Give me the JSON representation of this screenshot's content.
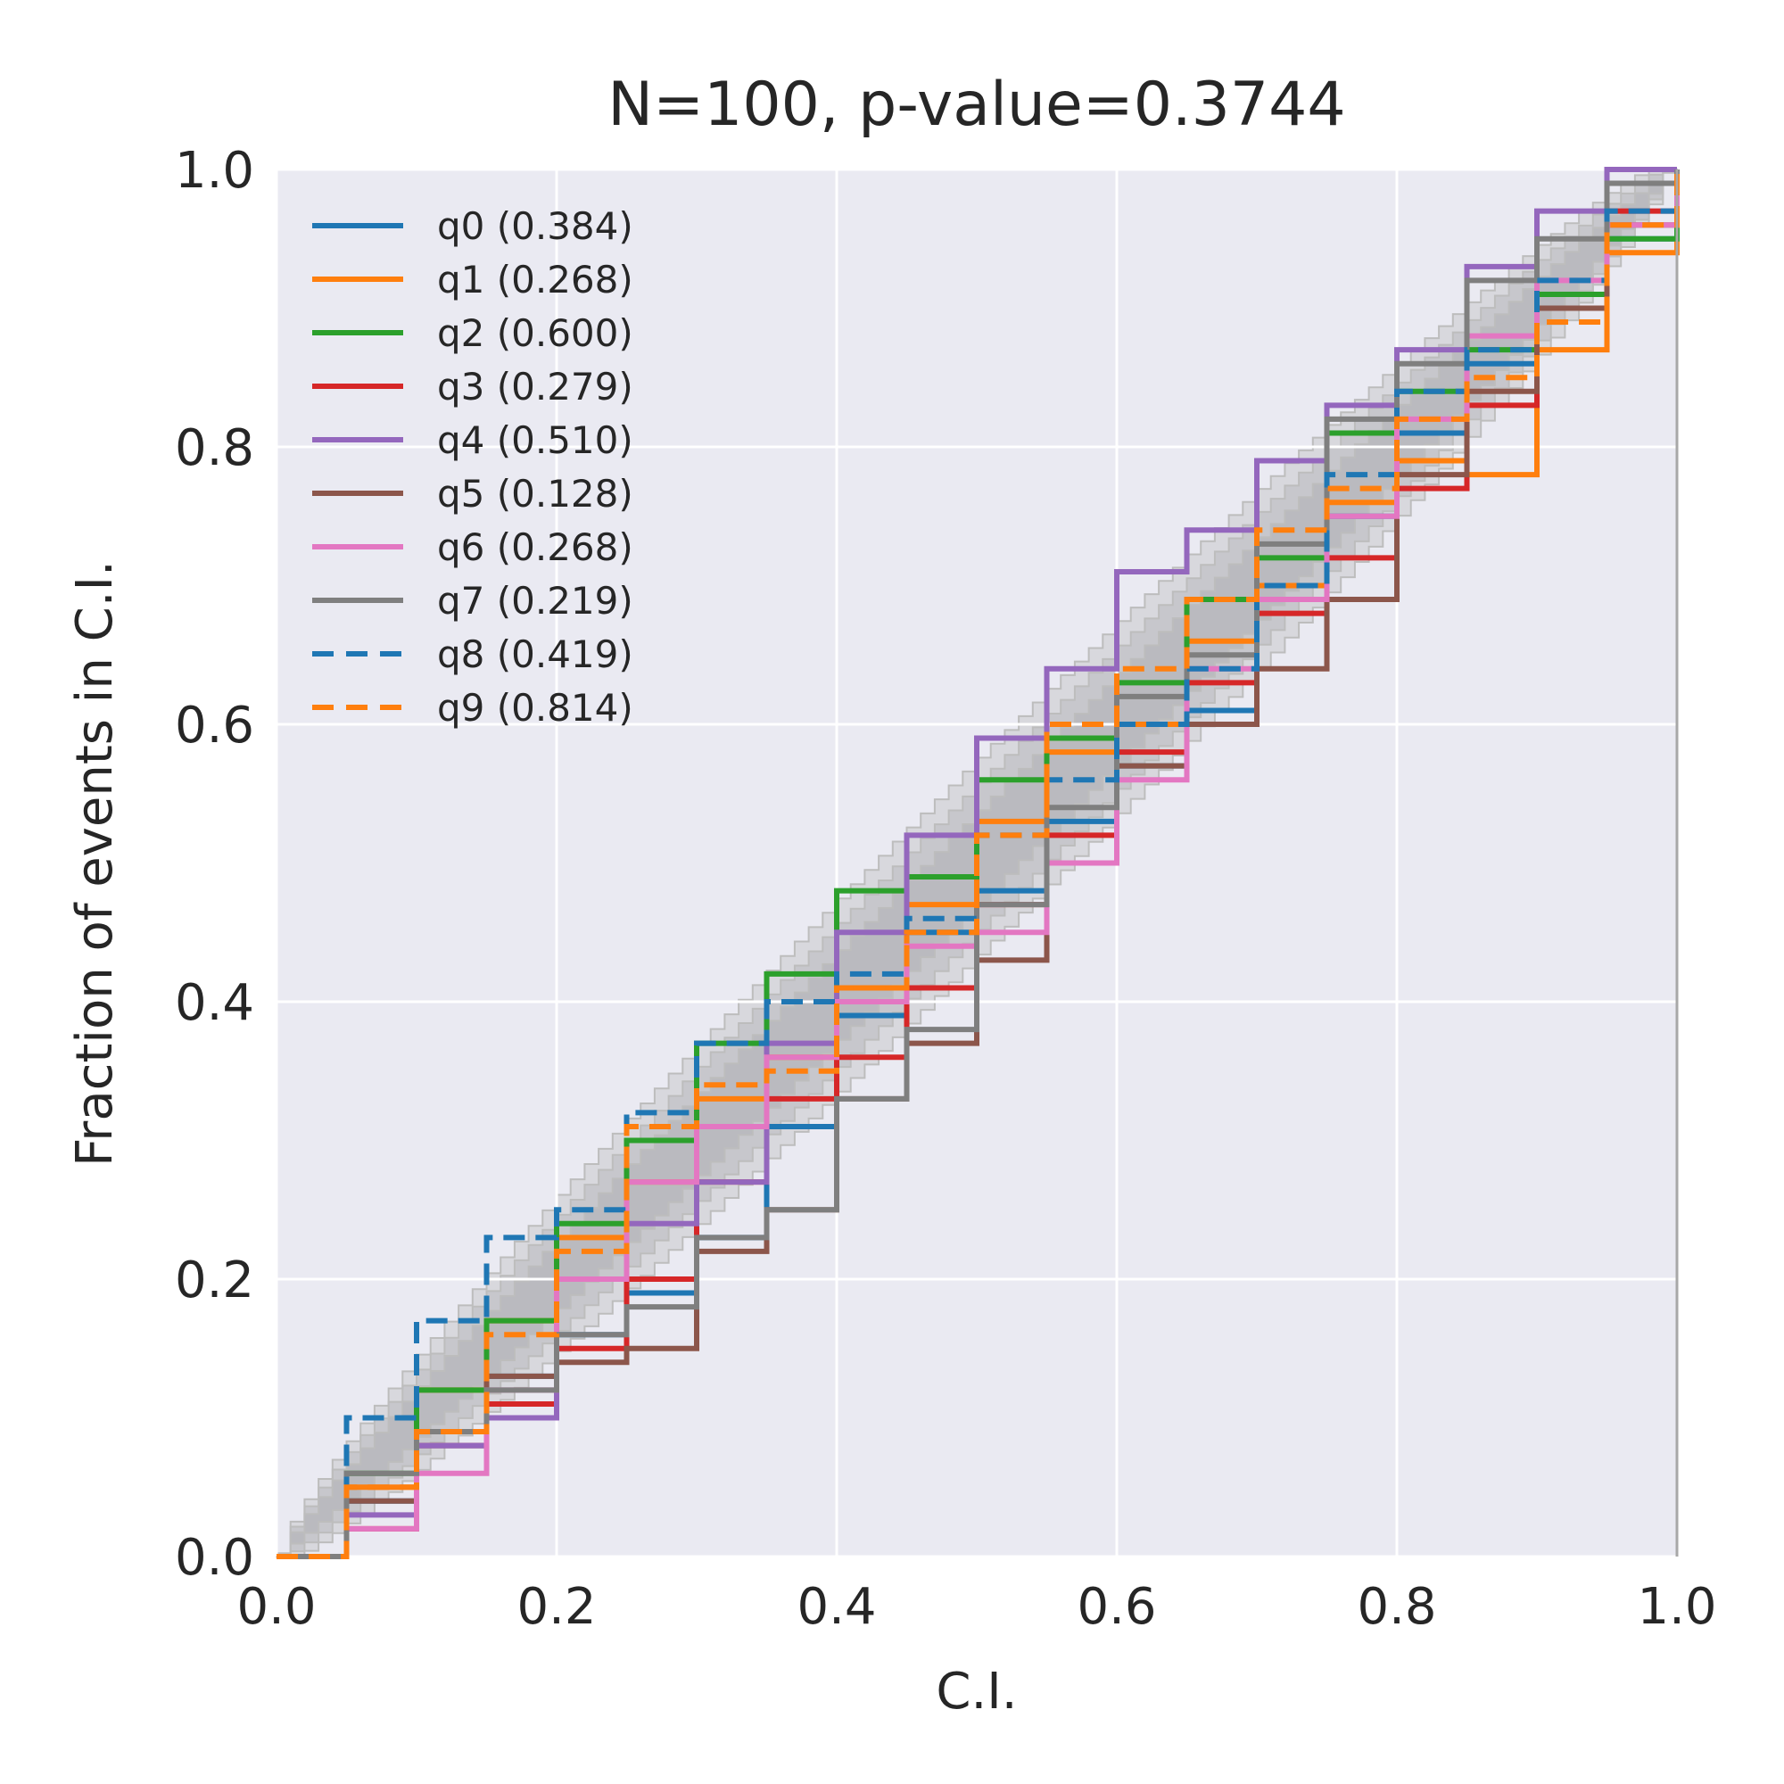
{
  "chart_data": {
    "type": "line",
    "title": "N=100, p-value=0.3744",
    "xlabel": "C.I.",
    "ylabel": "Fraction of events in C.I.",
    "xlim": [
      0,
      1
    ],
    "ylim": [
      0,
      1
    ],
    "xticks": [
      "0.0",
      "0.2",
      "0.4",
      "0.6",
      "0.8",
      "1.0"
    ],
    "yticks": [
      "0.0",
      "0.2",
      "0.4",
      "0.6",
      "0.8",
      "1.0"
    ],
    "grid": true,
    "legend_position": "upper-left",
    "background_color": "#eaeaf2",
    "confidence_bands": [
      {
        "level": "outer",
        "half_width": 0.076,
        "color": "#c8c8cc"
      },
      {
        "level": "middle",
        "half_width": 0.058,
        "color": "#b9b9be"
      },
      {
        "level": "inner",
        "half_width": 0.038,
        "color": "#aeaeb4"
      }
    ],
    "series": [
      {
        "name": "q0 (0.384)",
        "color": "#1f77b4",
        "dash": false,
        "points": [
          [
            0,
            0
          ],
          [
            0.05,
            0.04
          ],
          [
            0.1,
            0.08
          ],
          [
            0.15,
            0.13
          ],
          [
            0.2,
            0.16
          ],
          [
            0.25,
            0.19
          ],
          [
            0.3,
            0.23
          ],
          [
            0.35,
            0.31
          ],
          [
            0.4,
            0.39
          ],
          [
            0.45,
            0.45
          ],
          [
            0.5,
            0.48
          ],
          [
            0.55,
            0.53
          ],
          [
            0.6,
            0.57
          ],
          [
            0.65,
            0.61
          ],
          [
            0.7,
            0.7
          ],
          [
            0.75,
            0.75
          ],
          [
            0.8,
            0.81
          ],
          [
            0.85,
            0.86
          ],
          [
            0.9,
            0.9
          ],
          [
            0.95,
            0.95
          ],
          [
            1.0,
            1.0
          ]
        ]
      },
      {
        "name": "q1 (0.268)",
        "color": "#ff7f0e",
        "dash": false,
        "points": [
          [
            0,
            0
          ],
          [
            0.05,
            0.05
          ],
          [
            0.1,
            0.12
          ],
          [
            0.15,
            0.17
          ],
          [
            0.2,
            0.23
          ],
          [
            0.25,
            0.27
          ],
          [
            0.3,
            0.33
          ],
          [
            0.35,
            0.36
          ],
          [
            0.4,
            0.41
          ],
          [
            0.45,
            0.47
          ],
          [
            0.5,
            0.53
          ],
          [
            0.55,
            0.58
          ],
          [
            0.6,
            0.6
          ],
          [
            0.65,
            0.66
          ],
          [
            0.7,
            0.7
          ],
          [
            0.75,
            0.76
          ],
          [
            0.8,
            0.79
          ],
          [
            0.85,
            0.78
          ],
          [
            0.9,
            0.87
          ],
          [
            0.95,
            0.94
          ],
          [
            1.0,
            1.0
          ]
        ]
      },
      {
        "name": "q2 (0.600)",
        "color": "#2ca02c",
        "dash": false,
        "points": [
          [
            0,
            0
          ],
          [
            0.05,
            0.06
          ],
          [
            0.1,
            0.12
          ],
          [
            0.15,
            0.17
          ],
          [
            0.2,
            0.24
          ],
          [
            0.25,
            0.3
          ],
          [
            0.3,
            0.37
          ],
          [
            0.35,
            0.42
          ],
          [
            0.4,
            0.48
          ],
          [
            0.45,
            0.49
          ],
          [
            0.5,
            0.56
          ],
          [
            0.55,
            0.59
          ],
          [
            0.6,
            0.63
          ],
          [
            0.65,
            0.69
          ],
          [
            0.7,
            0.72
          ],
          [
            0.75,
            0.81
          ],
          [
            0.8,
            0.84
          ],
          [
            0.85,
            0.87
          ],
          [
            0.9,
            0.91
          ],
          [
            0.95,
            0.95
          ],
          [
            1.0,
            0.98
          ]
        ]
      },
      {
        "name": "q3 (0.279)",
        "color": "#d62728",
        "dash": false,
        "points": [
          [
            0,
            0
          ],
          [
            0.05,
            0.02
          ],
          [
            0.1,
            0.08
          ],
          [
            0.15,
            0.11
          ],
          [
            0.2,
            0.15
          ],
          [
            0.25,
            0.2
          ],
          [
            0.3,
            0.27
          ],
          [
            0.35,
            0.33
          ],
          [
            0.4,
            0.36
          ],
          [
            0.45,
            0.41
          ],
          [
            0.5,
            0.47
          ],
          [
            0.55,
            0.52
          ],
          [
            0.6,
            0.58
          ],
          [
            0.65,
            0.63
          ],
          [
            0.7,
            0.68
          ],
          [
            0.75,
            0.72
          ],
          [
            0.8,
            0.77
          ],
          [
            0.85,
            0.83
          ],
          [
            0.9,
            0.9
          ],
          [
            0.95,
            0.97
          ],
          [
            1.0,
            1.0
          ]
        ]
      },
      {
        "name": "q4 (0.510)",
        "color": "#9467bd",
        "dash": false,
        "points": [
          [
            0,
            0
          ],
          [
            0.05,
            0.03
          ],
          [
            0.1,
            0.08
          ],
          [
            0.15,
            0.1
          ],
          [
            0.2,
            0.2
          ],
          [
            0.25,
            0.24
          ],
          [
            0.3,
            0.27
          ],
          [
            0.35,
            0.37
          ],
          [
            0.4,
            0.45
          ],
          [
            0.45,
            0.52
          ],
          [
            0.5,
            0.59
          ],
          [
            0.55,
            0.64
          ],
          [
            0.6,
            0.71
          ],
          [
            0.65,
            0.74
          ],
          [
            0.7,
            0.79
          ],
          [
            0.75,
            0.83
          ],
          [
            0.8,
            0.87
          ],
          [
            0.85,
            0.93
          ],
          [
            0.9,
            0.97
          ],
          [
            0.95,
            1.0
          ],
          [
            1.0,
            1.0
          ]
        ]
      },
      {
        "name": "q5 (0.128)",
        "color": "#8c564b",
        "dash": false,
        "points": [
          [
            0,
            0
          ],
          [
            0.05,
            0.04
          ],
          [
            0.1,
            0.09
          ],
          [
            0.15,
            0.13
          ],
          [
            0.2,
            0.14
          ],
          [
            0.25,
            0.15
          ],
          [
            0.3,
            0.22
          ],
          [
            0.35,
            0.25
          ],
          [
            0.4,
            0.33
          ],
          [
            0.45,
            0.37
          ],
          [
            0.5,
            0.43
          ],
          [
            0.55,
            0.5
          ],
          [
            0.6,
            0.57
          ],
          [
            0.65,
            0.6
          ],
          [
            0.7,
            0.64
          ],
          [
            0.75,
            0.69
          ],
          [
            0.8,
            0.78
          ],
          [
            0.85,
            0.84
          ],
          [
            0.9,
            0.9
          ],
          [
            0.95,
            0.96
          ],
          [
            1.0,
            1.0
          ]
        ]
      },
      {
        "name": "q6 (0.268)",
        "color": "#e377c2",
        "dash": false,
        "points": [
          [
            0,
            0
          ],
          [
            0.05,
            0.02
          ],
          [
            0.1,
            0.06
          ],
          [
            0.15,
            0.12
          ],
          [
            0.2,
            0.2
          ],
          [
            0.25,
            0.27
          ],
          [
            0.3,
            0.31
          ],
          [
            0.35,
            0.36
          ],
          [
            0.4,
            0.4
          ],
          [
            0.45,
            0.44
          ],
          [
            0.5,
            0.45
          ],
          [
            0.55,
            0.5
          ],
          [
            0.6,
            0.56
          ],
          [
            0.65,
            0.64
          ],
          [
            0.7,
            0.69
          ],
          [
            0.75,
            0.75
          ],
          [
            0.8,
            0.82
          ],
          [
            0.85,
            0.88
          ],
          [
            0.9,
            0.92
          ],
          [
            0.95,
            0.96
          ],
          [
            1.0,
            1.0
          ]
        ]
      },
      {
        "name": "q7 (0.219)",
        "color": "#7f7f7f",
        "dash": false,
        "points": [
          [
            0,
            0
          ],
          [
            0.05,
            0.06
          ],
          [
            0.1,
            0.09
          ],
          [
            0.15,
            0.12
          ],
          [
            0.2,
            0.16
          ],
          [
            0.25,
            0.18
          ],
          [
            0.3,
            0.23
          ],
          [
            0.35,
            0.25
          ],
          [
            0.4,
            0.33
          ],
          [
            0.45,
            0.38
          ],
          [
            0.5,
            0.47
          ],
          [
            0.55,
            0.54
          ],
          [
            0.6,
            0.62
          ],
          [
            0.65,
            0.65
          ],
          [
            0.7,
            0.73
          ],
          [
            0.75,
            0.82
          ],
          [
            0.8,
            0.86
          ],
          [
            0.85,
            0.92
          ],
          [
            0.9,
            0.95
          ],
          [
            0.95,
            0.99
          ],
          [
            1.0,
            1.0
          ]
        ]
      },
      {
        "name": "q8 (0.419)",
        "color": "#1f77b4",
        "dash": true,
        "points": [
          [
            0,
            0
          ],
          [
            0.05,
            0.1
          ],
          [
            0.1,
            0.17
          ],
          [
            0.15,
            0.23
          ],
          [
            0.2,
            0.25
          ],
          [
            0.25,
            0.32
          ],
          [
            0.3,
            0.37
          ],
          [
            0.35,
            0.4
          ],
          [
            0.4,
            0.42
          ],
          [
            0.45,
            0.46
          ],
          [
            0.5,
            0.52
          ],
          [
            0.55,
            0.56
          ],
          [
            0.6,
            0.6
          ],
          [
            0.65,
            0.64
          ],
          [
            0.7,
            0.7
          ],
          [
            0.75,
            0.78
          ],
          [
            0.8,
            0.84
          ],
          [
            0.85,
            0.87
          ],
          [
            0.9,
            0.92
          ],
          [
            0.95,
            0.97
          ],
          [
            1.0,
            1.0
          ]
        ]
      },
      {
        "name": "q9 (0.814)",
        "color": "#ff7f0e",
        "dash": true,
        "points": [
          [
            0,
            0
          ],
          [
            0.05,
            0.05
          ],
          [
            0.1,
            0.09
          ],
          [
            0.15,
            0.16
          ],
          [
            0.2,
            0.22
          ],
          [
            0.25,
            0.31
          ],
          [
            0.3,
            0.34
          ],
          [
            0.35,
            0.35
          ],
          [
            0.4,
            0.41
          ],
          [
            0.45,
            0.45
          ],
          [
            0.5,
            0.52
          ],
          [
            0.55,
            0.6
          ],
          [
            0.6,
            0.64
          ],
          [
            0.65,
            0.69
          ],
          [
            0.7,
            0.74
          ],
          [
            0.75,
            0.77
          ],
          [
            0.8,
            0.82
          ],
          [
            0.85,
            0.85
          ],
          [
            0.9,
            0.89
          ],
          [
            0.95,
            0.96
          ],
          [
            1.0,
            1.0
          ]
        ]
      }
    ]
  }
}
